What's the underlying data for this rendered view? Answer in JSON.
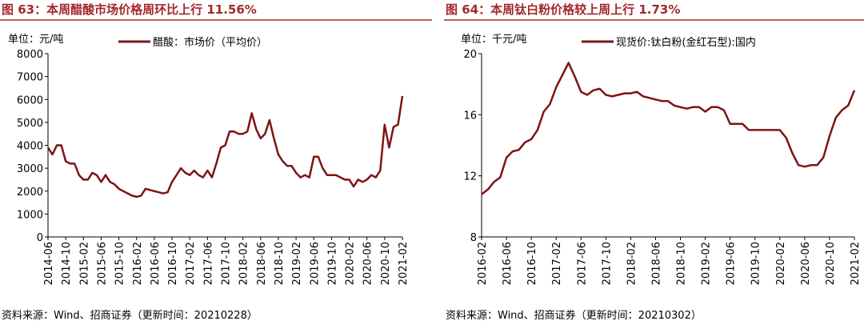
{
  "chart_data": [
    {
      "type": "line",
      "title": "图 63：本周醋酸市场价格周环比上行 11.56%",
      "unit": "单位：元/吨",
      "source": "资料来源：Wind、招商证券（更新时间：20210228）",
      "categories": [
        "2014-06",
        null,
        null,
        null,
        "2014-10",
        null,
        null,
        null,
        "2015-02",
        null,
        null,
        null,
        "2015-06",
        null,
        null,
        null,
        "2015-10",
        null,
        null,
        null,
        "2016-02",
        null,
        null,
        null,
        "2016-06",
        null,
        null,
        null,
        "2016-10",
        null,
        null,
        null,
        "2017-02",
        null,
        null,
        null,
        "2017-06",
        null,
        null,
        null,
        "2017-10",
        null,
        null,
        null,
        "2018-02",
        null,
        null,
        null,
        "2018-06",
        null,
        null,
        null,
        "2018-10",
        null,
        null,
        null,
        "2019-02",
        null,
        null,
        null,
        "2019-06",
        null,
        null,
        null,
        "2019-10",
        null,
        null,
        null,
        "2020-02",
        null,
        null,
        null,
        "2020-06",
        null,
        null,
        null,
        "2020-10",
        null,
        null,
        null,
        "2021-02"
      ],
      "series": [
        {
          "name": "醋酸：市场价（平均价）",
          "color": "#7d1414",
          "values": [
            3900,
            3600,
            4000,
            4000,
            3300,
            3200,
            3200,
            2700,
            2500,
            2500,
            2800,
            2700,
            2400,
            2700,
            2400,
            2300,
            2100,
            2000,
            1900,
            1800,
            1750,
            1800,
            2100,
            2050,
            2000,
            1950,
            1900,
            1950,
            2400,
            2700,
            3000,
            2800,
            2700,
            2900,
            2700,
            2600,
            2900,
            2600,
            3200,
            3900,
            4000,
            4600,
            4600,
            4500,
            4500,
            4600,
            5400,
            4700,
            4300,
            4500,
            5100,
            4300,
            3600,
            3300,
            3100,
            3100,
            2800,
            2600,
            2700,
            2600,
            3500,
            3500,
            3000,
            2700,
            2700,
            2700,
            2600,
            2500,
            2500,
            2200,
            2500,
            2400,
            2500,
            2700,
            2600,
            2900,
            4900,
            3900,
            4800,
            4900,
            6150
          ]
        }
      ],
      "ylim": [
        0,
        8000
      ],
      "yticks": [
        0,
        1000,
        2000,
        3000,
        4000,
        5000,
        6000,
        7000,
        8000
      ],
      "grid": false
    },
    {
      "type": "line",
      "title": "图 64：本周钛白粉价格较上周上行 1.73%",
      "unit": "单位：千元/吨",
      "source": "资料来源：Wind、招商证券（更新时间：20210302）",
      "categories": [
        "2016-02",
        null,
        null,
        null,
        "2016-06",
        null,
        null,
        null,
        "2016-10",
        null,
        null,
        null,
        "2017-02",
        null,
        null,
        null,
        "2017-06",
        null,
        null,
        null,
        "2017-10",
        null,
        null,
        null,
        "2018-02",
        null,
        null,
        null,
        "2018-06",
        null,
        null,
        null,
        "2018-10",
        null,
        null,
        null,
        "2019-02",
        null,
        null,
        null,
        "2019-06",
        null,
        null,
        null,
        "2019-10",
        null,
        null,
        null,
        "2020-02",
        null,
        null,
        null,
        "2020-06",
        null,
        null,
        null,
        "2020-10",
        null,
        null,
        null,
        "2021-02"
      ],
      "series": [
        {
          "name": "现货价:钛白粉(金红石型):国内",
          "color": "#7d1414",
          "values": [
            10.8,
            11.1,
            11.6,
            11.9,
            13.2,
            13.6,
            13.7,
            14.2,
            14.4,
            15.0,
            16.2,
            16.7,
            17.8,
            18.6,
            19.4,
            18.5,
            17.5,
            17.3,
            17.6,
            17.7,
            17.3,
            17.2,
            17.3,
            17.4,
            17.4,
            17.5,
            17.2,
            17.1,
            17.0,
            16.9,
            16.9,
            16.6,
            16.5,
            16.4,
            16.5,
            16.5,
            16.2,
            16.5,
            16.5,
            16.3,
            15.4,
            15.4,
            15.4,
            15.0,
            15.0,
            15.0,
            15.0,
            15.0,
            15.0,
            14.5,
            13.5,
            12.7,
            12.6,
            12.7,
            12.7,
            13.2,
            14.6,
            15.8,
            16.3,
            16.6,
            17.6
          ]
        }
      ],
      "ylim": [
        8,
        20
      ],
      "yticks": [
        8,
        12,
        16,
        20
      ],
      "grid": false
    }
  ]
}
